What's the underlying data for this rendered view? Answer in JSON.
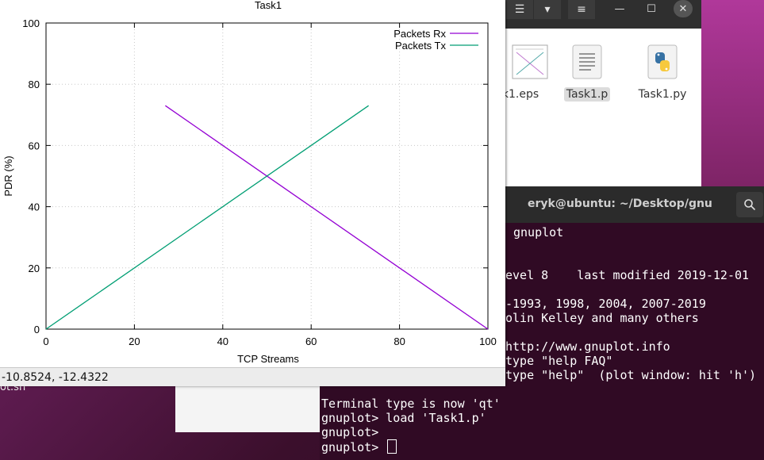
{
  "desktop": {
    "partial_label": "ot.sh"
  },
  "file_manager": {
    "buttons": {
      "list_view": "☰",
      "dropdown": "▾",
      "menu": "≡",
      "minimize": "—",
      "maximize": "☐",
      "close": "✕"
    },
    "files": [
      {
        "name": "k1.eps",
        "icon": "eps-thumbnail-icon",
        "selected": false
      },
      {
        "name": "Task1.p",
        "icon": "text-file-icon",
        "selected": true
      },
      {
        "name": "Task1.py",
        "icon": "python-file-icon",
        "selected": false
      }
    ]
  },
  "terminal": {
    "title": "eryk@ubuntu: ~/Desktop/gnu",
    "lines": [
      "gnuplot",
      "",
      "",
      "evel 8    last modified 2019-12-01",
      "",
      "-1993, 1998, 2004, 2007-2019",
      "olin Kelley and many others",
      "",
      "http://www.gnuplot.info",
      "type \"help FAQ\"",
      "type \"help\"  (plot window: hit 'h')"
    ],
    "prompt_lines": [
      "Terminal type is now 'qt'",
      "gnuplot> load 'Task1.p'",
      "gnuplot>",
      "gnuplot> "
    ]
  },
  "gnuplot_window": {
    "status_coords": "-10.8524, -12.4322"
  },
  "chart_data": {
    "type": "line",
    "title": "Task1",
    "xlabel": "TCP Streams",
    "ylabel": "PDR (%)",
    "xlim": [
      0,
      100
    ],
    "ylim": [
      0,
      100
    ],
    "xticks": [
      0,
      20,
      40,
      60,
      80,
      100
    ],
    "yticks": [
      0,
      20,
      40,
      60,
      80,
      100
    ],
    "grid": true,
    "legend_position": "top-right",
    "series": [
      {
        "name": "Packets Rx",
        "color": "#9400d3",
        "x": [
          27,
          100
        ],
        "y": [
          73,
          0
        ]
      },
      {
        "name": "Packets Tx",
        "color": "#009e73",
        "x": [
          0,
          73
        ],
        "y": [
          0,
          73
        ]
      }
    ]
  }
}
